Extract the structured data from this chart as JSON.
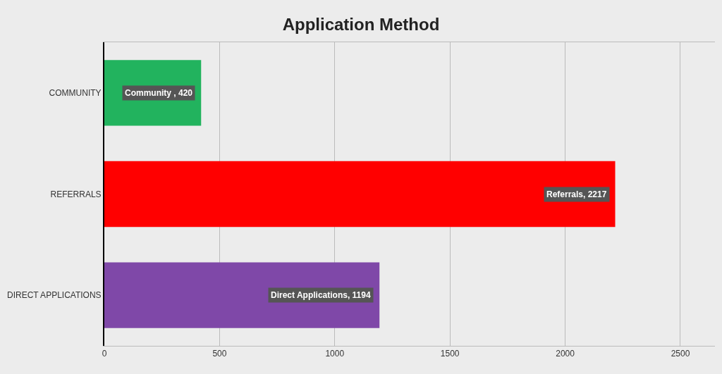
{
  "chart_data": {
    "type": "bar",
    "orientation": "horizontal",
    "title": "Application Method",
    "categories": [
      "COMMUNITY",
      "REFERRALS",
      "DIRECT APPLICATIONS"
    ],
    "values": [
      420,
      2217,
      1194
    ],
    "colors": [
      "#22b35e",
      "#ff0000",
      "#7f48a8"
    ],
    "value_labels": [
      "Community , 420",
      "Referrals, 2217",
      "Direct Applications, 1194"
    ],
    "xlim": [
      0,
      2650
    ],
    "xticks": [
      0,
      500,
      1000,
      1500,
      2000,
      2500
    ],
    "grid": "x"
  }
}
